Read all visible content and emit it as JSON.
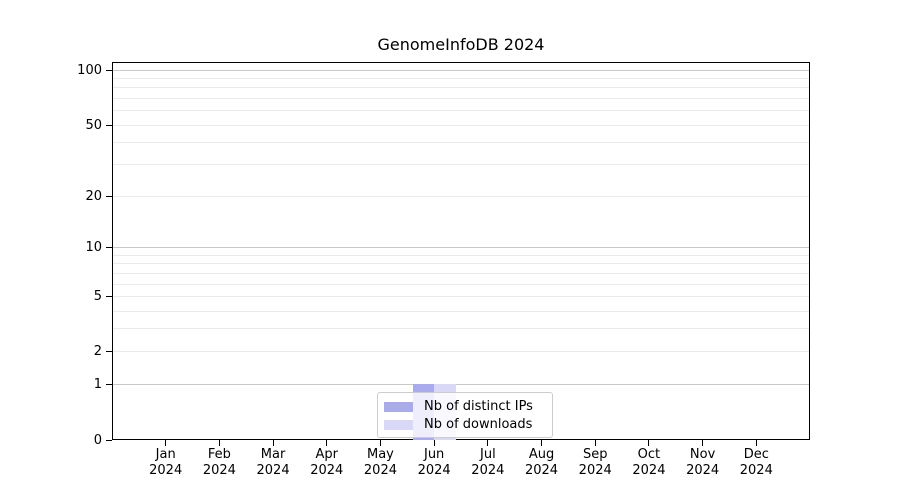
{
  "chart_data": {
    "type": "bar",
    "title": "GenomeInfoDB 2024",
    "categories": [
      "Jan",
      "Feb",
      "Mar",
      "Apr",
      "May",
      "Jun",
      "Jul",
      "Aug",
      "Sep",
      "Oct",
      "Nov",
      "Dec"
    ],
    "category_year": "2024",
    "series": [
      {
        "name": "Nb of distinct IPs",
        "color": "#aaaaee",
        "values": [
          0,
          0,
          0,
          0,
          0,
          1,
          0,
          0,
          0,
          0,
          0,
          0
        ]
      },
      {
        "name": "Nb of downloads",
        "color": "#d9d9f7",
        "values": [
          0,
          0,
          0,
          0,
          0,
          1,
          0,
          0,
          0,
          0,
          0,
          0
        ]
      }
    ],
    "xlabel": "",
    "ylabel": "",
    "yscale": "log1p",
    "yticks": [
      0,
      1,
      2,
      5,
      10,
      20,
      50,
      100
    ],
    "ylim": [
      0,
      111
    ],
    "grid": {
      "major": [
        1,
        10,
        100
      ],
      "minor": [
        2,
        3,
        4,
        5,
        6,
        7,
        8,
        9,
        20,
        30,
        40,
        50,
        60,
        70,
        80,
        90
      ],
      "major_color": "#c8c8c8",
      "minor_color": "#ebebeb"
    },
    "legend_position": "lower center",
    "axis_color": "#000000",
    "background_color": "#ffffff"
  }
}
